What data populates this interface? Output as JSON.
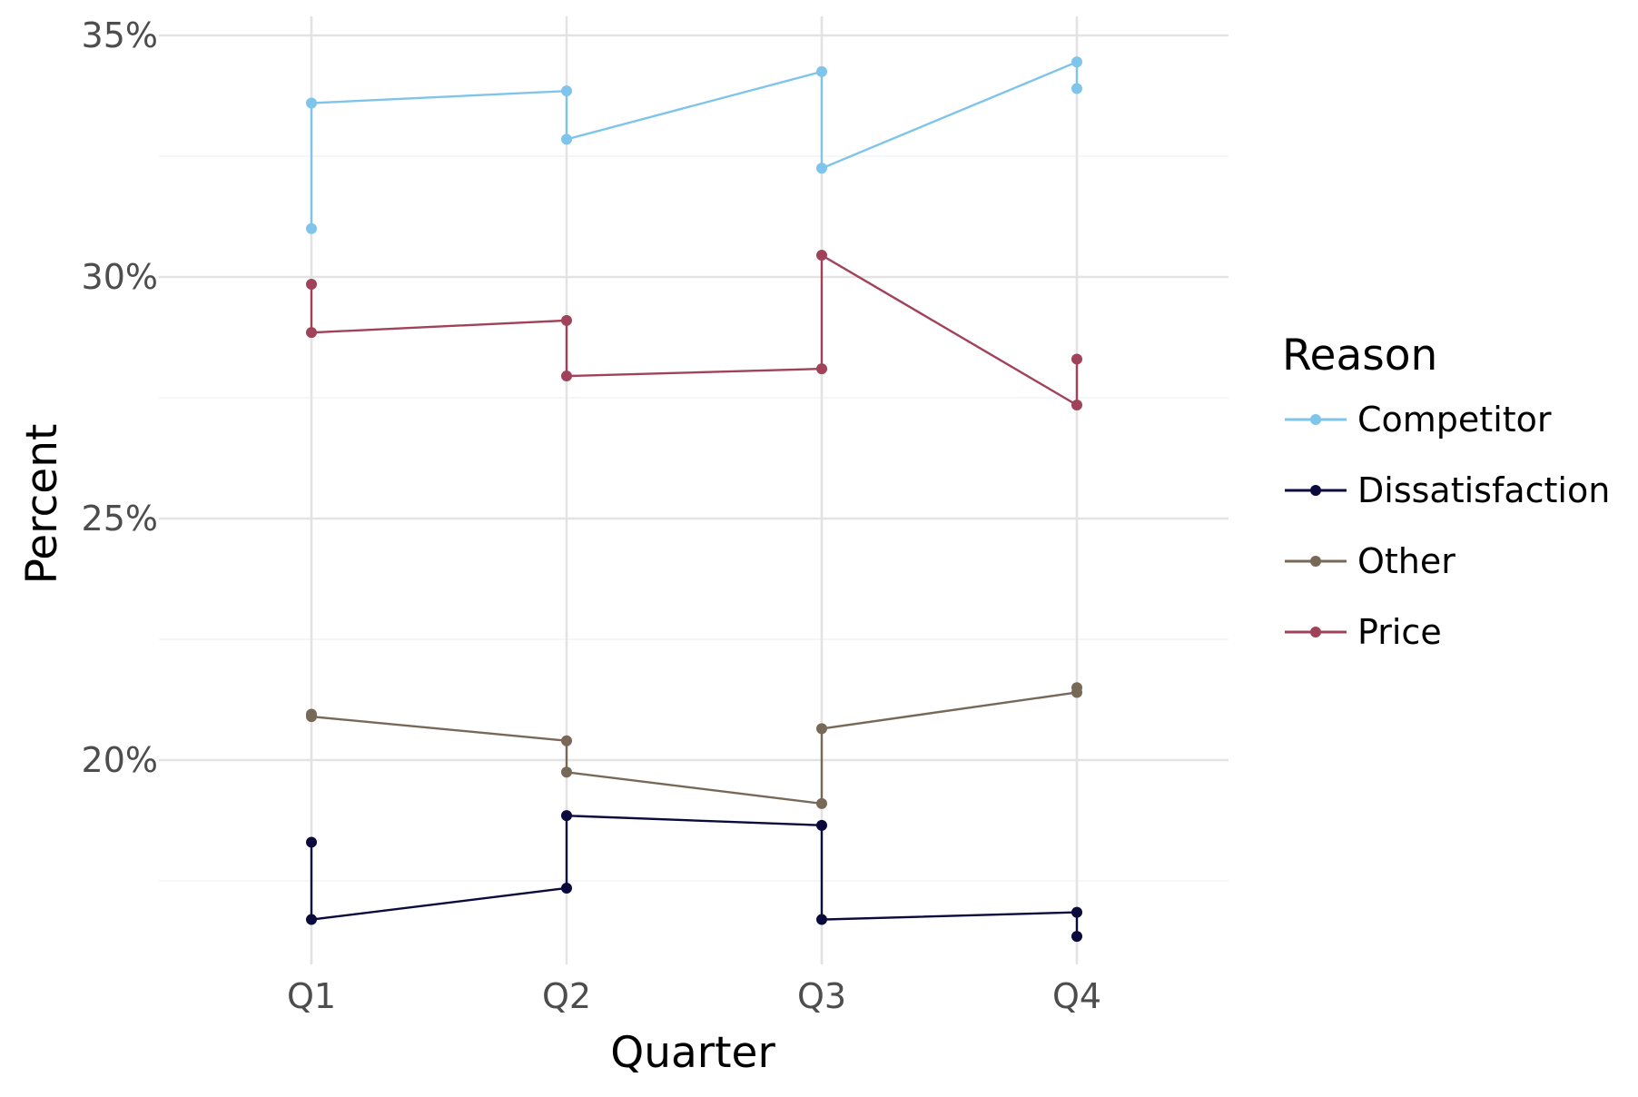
{
  "chart_data": {
    "type": "line",
    "xlabel": "Quarter",
    "ylabel": "Percent",
    "categories": [
      "Q1",
      "Q2",
      "Q3",
      "Q4"
    ],
    "ylim": [
      16.0,
      35.5
    ],
    "y_ticks": [
      {
        "value": 20,
        "label": "20%"
      },
      {
        "value": 25,
        "label": "25%"
      },
      {
        "value": 30,
        "label": "30%"
      },
      {
        "value": 35,
        "label": "35%"
      }
    ],
    "y_minor_ticks": [
      17.5,
      22.5,
      27.5,
      32.5
    ],
    "grid": true,
    "legend": {
      "title": "Reason",
      "position": "right"
    },
    "series": [
      {
        "name": "Competitor",
        "color": "#7fc4ea",
        "points": [
          {
            "x": "Q1",
            "y": 31.0
          },
          {
            "x": "Q1",
            "y": 33.6
          },
          {
            "x": "Q2",
            "y": 33.85
          },
          {
            "x": "Q2",
            "y": 32.85
          },
          {
            "x": "Q3",
            "y": 34.25
          },
          {
            "x": "Q3",
            "y": 32.25
          },
          {
            "x": "Q4",
            "y": 34.45
          },
          {
            "x": "Q4",
            "y": 33.9
          }
        ]
      },
      {
        "name": "Dissatisfaction",
        "color": "#0a0a3c",
        "points": [
          {
            "x": "Q1",
            "y": 18.3
          },
          {
            "x": "Q1",
            "y": 16.7
          },
          {
            "x": "Q2",
            "y": 17.35
          },
          {
            "x": "Q2",
            "y": 18.85
          },
          {
            "x": "Q3",
            "y": 18.65
          },
          {
            "x": "Q3",
            "y": 16.7
          },
          {
            "x": "Q4",
            "y": 16.85
          },
          {
            "x": "Q4",
            "y": 16.35
          }
        ]
      },
      {
        "name": "Other",
        "color": "#786858",
        "points": [
          {
            "x": "Q1",
            "y": 20.95
          },
          {
            "x": "Q1",
            "y": 20.9
          },
          {
            "x": "Q2",
            "y": 20.4
          },
          {
            "x": "Q2",
            "y": 19.75
          },
          {
            "x": "Q3",
            "y": 19.1
          },
          {
            "x": "Q3",
            "y": 20.65
          },
          {
            "x": "Q4",
            "y": 21.4
          },
          {
            "x": "Q4",
            "y": 21.5
          }
        ]
      },
      {
        "name": "Price",
        "color": "#a0435a",
        "points": [
          {
            "x": "Q1",
            "y": 29.85
          },
          {
            "x": "Q1",
            "y": 28.85
          },
          {
            "x": "Q2",
            "y": 29.1
          },
          {
            "x": "Q2",
            "y": 27.95
          },
          {
            "x": "Q3",
            "y": 28.1
          },
          {
            "x": "Q3",
            "y": 30.45
          },
          {
            "x": "Q4",
            "y": 27.35
          },
          {
            "x": "Q4",
            "y": 28.3
          }
        ]
      }
    ]
  }
}
